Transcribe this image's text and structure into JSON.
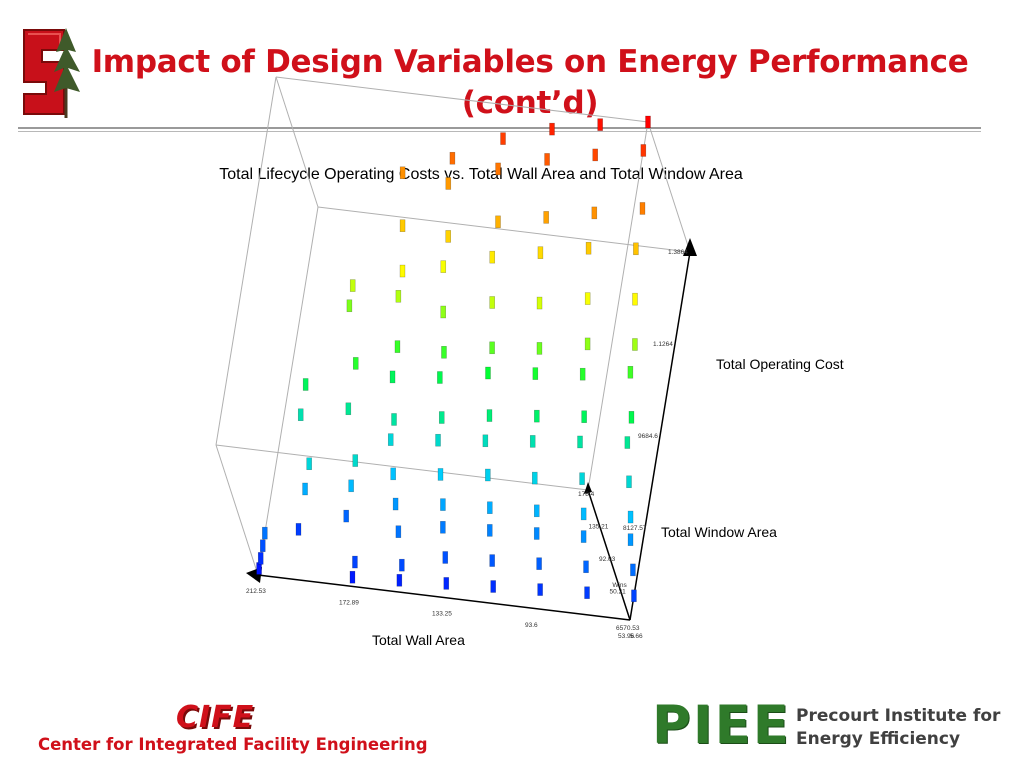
{
  "slide": {
    "title_line1": "Impact of Design Variables on Energy Performance",
    "title_line2": "(cont’d)"
  },
  "logos": {
    "cife_name": "CIFE",
    "cife_subtitle": "Center for Integrated Facility Engineering",
    "piee_name": "PIEE",
    "piee_line1": "Precourt Institute for",
    "piee_line2": "Energy Efficiency",
    "brand_red": "#d0101a",
    "brand_green": "#2f7a2a"
  },
  "chart_data": {
    "type": "scatter",
    "title": "Total Lifecycle Operating Costs vs. Total Wall Area and Total Window Area",
    "x_axis_label": "Total Wall Area",
    "y_axis_label": "Total Window Area",
    "z_axis_label": "Total Operating Cost",
    "x_ticks": [
      "212.53",
      "172.89",
      "133.25",
      "93.6",
      "53.96"
    ],
    "y_ticks": [
      "5.66",
      "50.21",
      "92.03",
      "135.21",
      "178.4"
    ],
    "y_end_label": "Wins",
    "z_ticks": [
      "6570.53",
      "8127.57",
      "9684.6",
      "1.1264",
      "1.3864"
    ],
    "x_range": [
      53.96,
      212.53
    ],
    "y_range": [
      5.66,
      178.4
    ],
    "z_range": [
      6570.53,
      13864
    ],
    "color_scale": [
      "#0000ff",
      "#00ccff",
      "#00ff33",
      "#ffff00",
      "#ff8800",
      "#ff0000"
    ],
    "grid": false,
    "points": [
      {
        "x": 212.53,
        "y": 5.66,
        "z": 6700
      },
      {
        "x": 212.53,
        "y": 5.66,
        "z": 6900
      },
      {
        "x": 212.53,
        "y": 5.66,
        "z": 7150
      },
      {
        "x": 212.53,
        "y": 5.66,
        "z": 7400
      },
      {
        "x": 192.7,
        "y": 45,
        "z": 7000
      },
      {
        "x": 192.7,
        "y": 45,
        "z": 7800
      },
      {
        "x": 192.7,
        "y": 45,
        "z": 8300
      },
      {
        "x": 192.7,
        "y": 90,
        "z": 8600
      },
      {
        "x": 192.7,
        "y": 90,
        "z": 9200
      },
      {
        "x": 172.89,
        "y": 5.66,
        "z": 6750
      },
      {
        "x": 172.89,
        "y": 5.66,
        "z": 7050
      },
      {
        "x": 172.89,
        "y": 50,
        "z": 7300
      },
      {
        "x": 172.89,
        "y": 50,
        "z": 7900
      },
      {
        "x": 172.89,
        "y": 50,
        "z": 8400
      },
      {
        "x": 172.89,
        "y": 92,
        "z": 8800
      },
      {
        "x": 172.89,
        "y": 92,
        "z": 9700
      },
      {
        "x": 172.89,
        "y": 135,
        "z": 10200
      },
      {
        "x": 172.89,
        "y": 135,
        "z": 10600
      },
      {
        "x": 153.07,
        "y": 5.66,
        "z": 6800
      },
      {
        "x": 153.07,
        "y": 5.66,
        "z": 7100
      },
      {
        "x": 153.07,
        "y": 30,
        "z": 7400
      },
      {
        "x": 153.07,
        "y": 50,
        "z": 7650
      },
      {
        "x": 153.07,
        "y": 70,
        "z": 7950
      },
      {
        "x": 153.07,
        "y": 92,
        "z": 8300
      },
      {
        "x": 153.07,
        "y": 92,
        "z": 8700
      },
      {
        "x": 153.07,
        "y": 115,
        "z": 9200
      },
      {
        "x": 153.07,
        "y": 115,
        "z": 9800
      },
      {
        "x": 153.07,
        "y": 135,
        "z": 10500
      },
      {
        "x": 153.07,
        "y": 135,
        "z": 11000
      },
      {
        "x": 153.07,
        "y": 155,
        "z": 11600
      },
      {
        "x": 153.07,
        "y": 178.4,
        "z": 12300
      },
      {
        "x": 133.25,
        "y": 5.66,
        "z": 6850
      },
      {
        "x": 133.25,
        "y": 20,
        "z": 7150
      },
      {
        "x": 133.25,
        "y": 40,
        "z": 7450
      },
      {
        "x": 133.25,
        "y": 50,
        "z": 7750
      },
      {
        "x": 133.25,
        "y": 70,
        "z": 8050
      },
      {
        "x": 133.25,
        "y": 92,
        "z": 8400
      },
      {
        "x": 133.25,
        "y": 92,
        "z": 8850
      },
      {
        "x": 133.25,
        "y": 115,
        "z": 9300
      },
      {
        "x": 133.25,
        "y": 115,
        "z": 9800
      },
      {
        "x": 133.25,
        "y": 135,
        "z": 10300
      },
      {
        "x": 133.25,
        "y": 155,
        "z": 10900
      },
      {
        "x": 133.25,
        "y": 155,
        "z": 11500
      },
      {
        "x": 133.25,
        "y": 178.4,
        "z": 12200
      },
      {
        "x": 133.25,
        "y": 178.4,
        "z": 12700
      },
      {
        "x": 113.43,
        "y": 5.66,
        "z": 6900
      },
      {
        "x": 113.43,
        "y": 20,
        "z": 7200
      },
      {
        "x": 113.43,
        "y": 40,
        "z": 7500
      },
      {
        "x": 113.43,
        "y": 50,
        "z": 7800
      },
      {
        "x": 113.43,
        "y": 70,
        "z": 8150
      },
      {
        "x": 113.43,
        "y": 92,
        "z": 8500
      },
      {
        "x": 113.43,
        "y": 92,
        "z": 9000
      },
      {
        "x": 113.43,
        "y": 115,
        "z": 9500
      },
      {
        "x": 113.43,
        "y": 115,
        "z": 10000
      },
      {
        "x": 113.43,
        "y": 135,
        "z": 10600
      },
      {
        "x": 113.43,
        "y": 155,
        "z": 11200
      },
      {
        "x": 113.43,
        "y": 155,
        "z": 11900
      },
      {
        "x": 113.43,
        "y": 178.4,
        "z": 12600
      },
      {
        "x": 113.43,
        "y": 178.4,
        "z": 13200
      },
      {
        "x": 93.6,
        "y": 5.66,
        "z": 6950
      },
      {
        "x": 93.6,
        "y": 20,
        "z": 7250
      },
      {
        "x": 93.6,
        "y": 40,
        "z": 7550
      },
      {
        "x": 93.6,
        "y": 50,
        "z": 7850
      },
      {
        "x": 93.6,
        "y": 70,
        "z": 8200
      },
      {
        "x": 93.6,
        "y": 92,
        "z": 8600
      },
      {
        "x": 93.6,
        "y": 92,
        "z": 9100
      },
      {
        "x": 93.6,
        "y": 115,
        "z": 9600
      },
      {
        "x": 93.6,
        "y": 115,
        "z": 10100
      },
      {
        "x": 93.6,
        "y": 135,
        "z": 10700
      },
      {
        "x": 93.6,
        "y": 155,
        "z": 11400
      },
      {
        "x": 93.6,
        "y": 155,
        "z": 12100
      },
      {
        "x": 93.6,
        "y": 178.4,
        "z": 12900
      },
      {
        "x": 93.6,
        "y": 178.4,
        "z": 13500
      },
      {
        "x": 73.78,
        "y": 5.66,
        "z": 7000
      },
      {
        "x": 73.78,
        "y": 20,
        "z": 7300
      },
      {
        "x": 73.78,
        "y": 40,
        "z": 7600
      },
      {
        "x": 73.78,
        "y": 50,
        "z": 7900
      },
      {
        "x": 73.78,
        "y": 70,
        "z": 8300
      },
      {
        "x": 73.78,
        "y": 92,
        "z": 8700
      },
      {
        "x": 73.78,
        "y": 92,
        "z": 9200
      },
      {
        "x": 73.78,
        "y": 115,
        "z": 9700
      },
      {
        "x": 73.78,
        "y": 115,
        "z": 10300
      },
      {
        "x": 73.78,
        "y": 135,
        "z": 10900
      },
      {
        "x": 73.78,
        "y": 155,
        "z": 11600
      },
      {
        "x": 73.78,
        "y": 155,
        "z": 12300
      },
      {
        "x": 73.78,
        "y": 178.4,
        "z": 13100
      },
      {
        "x": 73.78,
        "y": 178.4,
        "z": 13700
      },
      {
        "x": 53.96,
        "y": 5.66,
        "z": 7050
      },
      {
        "x": 53.96,
        "y": 20,
        "z": 7350
      },
      {
        "x": 53.96,
        "y": 40,
        "z": 7650
      },
      {
        "x": 53.96,
        "y": 50,
        "z": 7950
      },
      {
        "x": 53.96,
        "y": 70,
        "z": 8350
      },
      {
        "x": 53.96,
        "y": 92,
        "z": 8800
      },
      {
        "x": 53.96,
        "y": 92,
        "z": 9300
      },
      {
        "x": 53.96,
        "y": 115,
        "z": 9850
      },
      {
        "x": 53.96,
        "y": 115,
        "z": 10400
      },
      {
        "x": 53.96,
        "y": 135,
        "z": 11000
      },
      {
        "x": 53.96,
        "y": 155,
        "z": 11700
      },
      {
        "x": 53.96,
        "y": 155,
        "z": 12500
      },
      {
        "x": 53.96,
        "y": 178.4,
        "z": 13300
      },
      {
        "x": 53.96,
        "y": 178.4,
        "z": 13864
      }
    ]
  }
}
